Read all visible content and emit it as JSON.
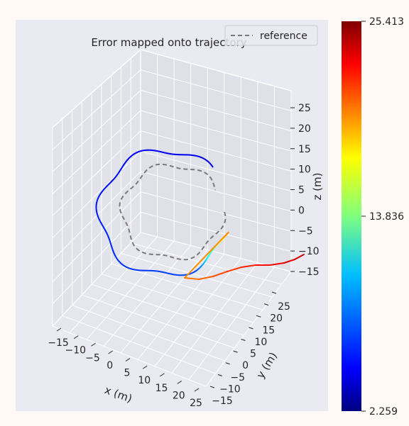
{
  "chart_data": {
    "type": "line",
    "projection": "3d",
    "title": "Error mapped onto trajectory",
    "xlabel": "x (m)",
    "ylabel": "y (m)",
    "zlabel": "z (m)",
    "x_ticks": [
      "−15",
      "−10",
      "−5",
      "0",
      "5",
      "10",
      "15",
      "20",
      "25"
    ],
    "y_ticks": [
      "−15",
      "−10",
      "−5",
      "0",
      "5",
      "10",
      "15",
      "20",
      "25"
    ],
    "z_ticks": [
      "25",
      "20",
      "15",
      "10",
      "5",
      "0",
      "−5",
      "−10",
      "−15"
    ],
    "legend": {
      "placement": "top-right",
      "entries": [
        {
          "label": "reference",
          "style": "dashed",
          "color": "#808080"
        }
      ]
    },
    "colorbar": {
      "colormap": "jet",
      "min": 2.259,
      "mid": 13.836,
      "max": 25.413,
      "tick_labels": [
        "25.413",
        "13.836",
        "2.259"
      ]
    },
    "series": [
      {
        "name": "reference",
        "style": "dashed",
        "color": "#808080"
      },
      {
        "name": "trajectory",
        "style": "solid",
        "color_by": "error"
      }
    ],
    "grid": true
  }
}
